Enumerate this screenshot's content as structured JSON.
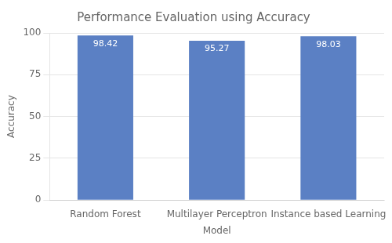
{
  "chart_data": {
    "type": "bar",
    "title": "Performance Evaluation using Accuracy",
    "xlabel": "Model",
    "ylabel": "Accuracy",
    "categories": [
      "Random Forest",
      "Multilayer Perceptron",
      "Instance based Learning"
    ],
    "values": [
      98.42,
      95.27,
      98.03
    ],
    "color": "#5b80c4",
    "ylim": [
      0,
      100
    ],
    "yticks": [
      0,
      25,
      50,
      75,
      100
    ],
    "grid": true,
    "data_labels": true
  }
}
